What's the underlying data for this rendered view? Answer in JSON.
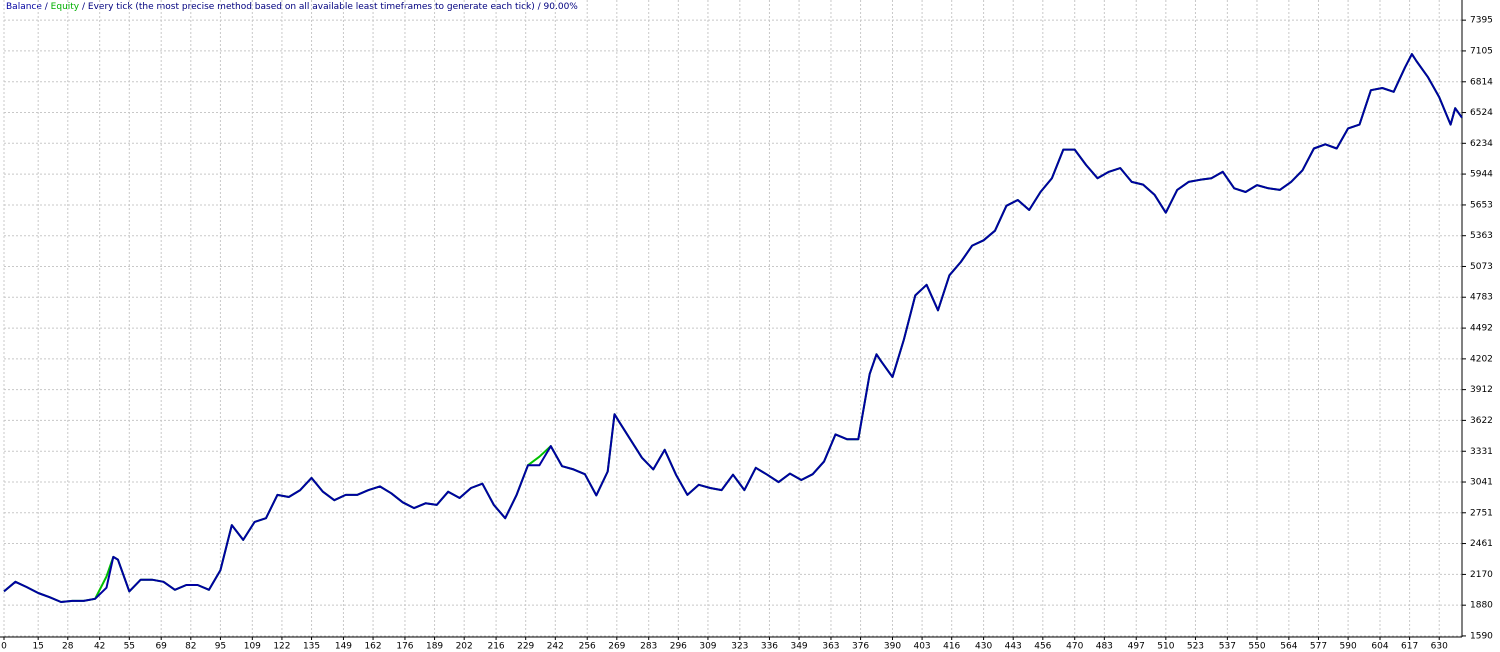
{
  "chart_data": {
    "type": "line",
    "separator": " / ",
    "subtitle": "Every tick (the most precise method based on all available least timeframes to generate each tick)",
    "quality": "90.00%",
    "x": [
      0,
      5,
      10,
      15,
      20,
      25,
      30,
      35,
      40,
      45,
      48,
      50,
      55,
      60,
      65,
      70,
      75,
      80,
      85,
      90,
      95,
      100,
      105,
      110,
      115,
      120,
      125,
      130,
      135,
      140,
      145,
      150,
      155,
      160,
      165,
      170,
      175,
      180,
      185,
      190,
      195,
      200,
      205,
      210,
      215,
      220,
      225,
      230,
      235,
      240,
      245,
      250,
      255,
      260,
      265,
      268,
      270,
      275,
      280,
      285,
      290,
      295,
      300,
      305,
      310,
      315,
      320,
      325,
      330,
      335,
      340,
      345,
      350,
      355,
      360,
      365,
      370,
      375,
      380,
      383,
      385,
      390,
      395,
      400,
      405,
      410,
      415,
      420,
      425,
      430,
      435,
      440,
      445,
      450,
      455,
      460,
      465,
      470,
      475,
      480,
      485,
      490,
      495,
      500,
      505,
      510,
      515,
      520,
      525,
      530,
      535,
      540,
      545,
      550,
      555,
      560,
      565,
      570,
      575,
      580,
      585,
      590,
      595,
      600,
      605,
      610,
      615,
      618,
      620,
      625,
      630,
      635,
      637,
      640
    ],
    "series": [
      {
        "name": "Balance",
        "color": "#0000a0",
        "values": [
          2010,
          2100,
          2050,
          1995,
          1955,
          1910,
          1920,
          1920,
          1940,
          2045,
          2335,
          2310,
          2010,
          2120,
          2120,
          2100,
          2025,
          2070,
          2070,
          2025,
          2210,
          2635,
          2495,
          2665,
          2700,
          2920,
          2900,
          2965,
          3080,
          2950,
          2870,
          2920,
          2920,
          2965,
          3000,
          2935,
          2850,
          2795,
          2840,
          2825,
          2950,
          2890,
          2985,
          3025,
          2825,
          2700,
          2920,
          3200,
          3200,
          3380,
          3190,
          3160,
          3115,
          2915,
          3140,
          3680,
          3610,
          3440,
          3270,
          3160,
          3345,
          3110,
          2920,
          3015,
          2985,
          2965,
          3110,
          2965,
          3175,
          3110,
          3040,
          3120,
          3060,
          3115,
          3235,
          3490,
          3445,
          3445,
          4060,
          4245,
          4180,
          4030,
          4385,
          4800,
          4900,
          4660,
          4990,
          5115,
          5270,
          5320,
          5410,
          5645,
          5700,
          5605,
          5775,
          5905,
          6175,
          6175,
          6030,
          5905,
          5965,
          6000,
          5870,
          5845,
          5750,
          5580,
          5795,
          5870,
          5890,
          5905,
          5965,
          5810,
          5775,
          5840,
          5810,
          5795,
          5870,
          5980,
          6185,
          6225,
          6185,
          6375,
          6410,
          6735,
          6755,
          6720,
          6950,
          7075,
          7010,
          6860,
          6670,
          6410,
          6565,
          6475
        ]
      },
      {
        "name": "Equity",
        "color": "#00c000",
        "values": [
          2010,
          2100,
          2050,
          1995,
          1955,
          1910,
          1920,
          1920,
          1940,
          2150,
          2335,
          2310,
          2010,
          2120,
          2120,
          2100,
          2025,
          2070,
          2070,
          2025,
          2210,
          2635,
          2495,
          2665,
          2700,
          2920,
          2900,
          2965,
          3080,
          2950,
          2870,
          2920,
          2920,
          2965,
          3000,
          2935,
          2850,
          2795,
          2840,
          2825,
          2950,
          2890,
          2985,
          3025,
          2825,
          2700,
          2920,
          3200,
          3280,
          3380,
          3190,
          3160,
          3115,
          2915,
          3140,
          3680,
          3610,
          3440,
          3270,
          3160,
          3345,
          3110,
          2920,
          3015,
          2985,
          2965,
          3110,
          2965,
          3175,
          3110,
          3040,
          3120,
          3060,
          3115,
          3235,
          3490,
          3445,
          3445,
          4060,
          4245,
          4180,
          4030,
          4385,
          4800,
          4900,
          4660,
          4990,
          5115,
          5270,
          5320,
          5410,
          5645,
          5700,
          5605,
          5775,
          5905,
          6175,
          6175,
          6030,
          5905,
          5965,
          6000,
          5870,
          5845,
          5750,
          5580,
          5795,
          5870,
          5890,
          5905,
          5965,
          5810,
          5775,
          5840,
          5810,
          5795,
          5870,
          5980,
          6185,
          6225,
          6185,
          6375,
          6410,
          6735,
          6755,
          6720,
          6950,
          7075,
          7010,
          6860,
          6670,
          6410,
          6565,
          6475
        ]
      }
    ],
    "xlim": [
      0,
      640
    ],
    "xticks": [
      0,
      15,
      28,
      42,
      55,
      69,
      82,
      95,
      109,
      122,
      135,
      149,
      162,
      176,
      189,
      202,
      216,
      229,
      242,
      256,
      269,
      283,
      296,
      309,
      323,
      336,
      349,
      363,
      376,
      390,
      403,
      416,
      430,
      443,
      456,
      470,
      483,
      497,
      510,
      523,
      537,
      550,
      564,
      577,
      590,
      604,
      617,
      630
    ],
    "ylim": [
      1580,
      7585
    ],
    "yticks": [
      1590,
      1880,
      2170,
      2461,
      2751,
      3041,
      3331,
      3622,
      3912,
      4202,
      4492,
      4783,
      5073,
      5363,
      5653,
      5944,
      6234,
      6524,
      6814,
      7105,
      7395
    ],
    "grid": true
  }
}
